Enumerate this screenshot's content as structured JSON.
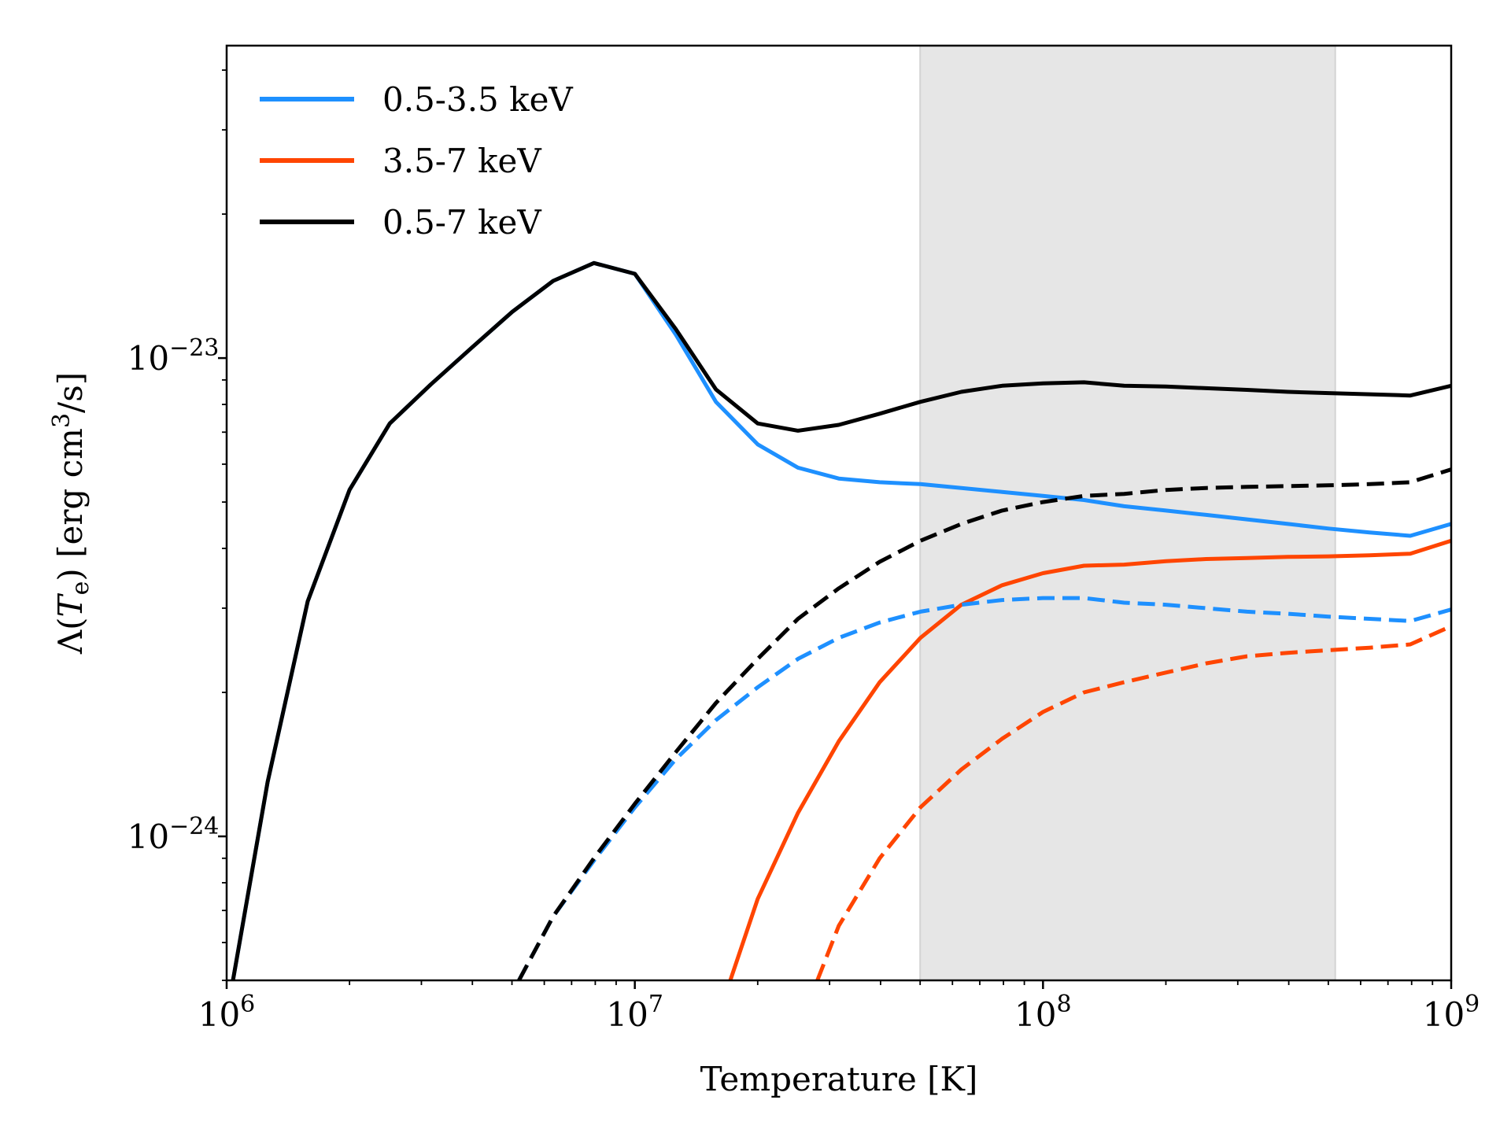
{
  "chart_data": {
    "type": "line",
    "xlabel": "Temperature [K]",
    "ylabel": {
      "prefix": "Λ(",
      "var": "T",
      "sub": "e",
      "mid": ") [erg cm",
      "sup": "3",
      "suffix": "/s]"
    },
    "x_scale": "log",
    "y_scale": "log",
    "xlim": [
      1000000,
      1000000000
    ],
    "ylim": [
      5e-25,
      4.5e-23
    ],
    "grid": false,
    "legend_position": "top-left",
    "x_ticks": [
      {
        "value": 1000000,
        "base": "10",
        "exp": "6"
      },
      {
        "value": 10000000,
        "base": "10",
        "exp": "7"
      },
      {
        "value": 100000000,
        "base": "10",
        "exp": "8"
      },
      {
        "value": 1000000000,
        "base": "10",
        "exp": "9"
      }
    ],
    "y_ticks": [
      {
        "value": 1e-24,
        "base": "10",
        "exp": "−24"
      },
      {
        "value": 1e-23,
        "base": "10",
        "exp": "−23"
      }
    ],
    "shaded_region": {
      "x_range": [
        50000000,
        520000000
      ],
      "color": "#e6e6e6"
    },
    "series": [
      {
        "name": "0.5-3.5 keV",
        "color": "#1e90ff",
        "style": "solid",
        "in_legend": true,
        "x": [
          1000000,
          1260000,
          1580000,
          2000000,
          2510000,
          3160000,
          3980000,
          5010000,
          6310000,
          7940000,
          10000000,
          12600000,
          15800000,
          20000000,
          25100000,
          31600000,
          39800000,
          50100000,
          63100000,
          79400000,
          100000000,
          126000000,
          158000000,
          200000000,
          251000000,
          316000000,
          398000000,
          501000000,
          631000000,
          794000000,
          1000000000
        ],
        "y": [
          4.2e-25,
          1.3e-24,
          3.1e-24,
          5.3e-24,
          7.3e-24,
          8.8e-24,
          1.05e-23,
          1.25e-23,
          1.45e-23,
          1.58e-23,
          1.5e-23,
          1.12e-23,
          8.1e-24,
          6.6e-24,
          5.9e-24,
          5.6e-24,
          5.5e-24,
          5.45e-24,
          5.35e-24,
          5.25e-24,
          5.15e-24,
          5.05e-24,
          4.9e-24,
          4.8e-24,
          4.7e-24,
          4.6e-24,
          4.5e-24,
          4.4e-24,
          4.32e-24,
          4.25e-24,
          4.5e-24
        ]
      },
      {
        "name": "3.5-7 keV",
        "color": "#ff4500",
        "style": "solid",
        "in_legend": true,
        "x": [
          16000000,
          20000000,
          25100000,
          31600000,
          39800000,
          50100000,
          63100000,
          79400000,
          100000000,
          126000000,
          158000000,
          200000000,
          251000000,
          316000000,
          398000000,
          501000000,
          631000000,
          794000000,
          1000000000
        ],
        "y": [
          4.2e-25,
          7.4e-25,
          1.12e-24,
          1.58e-24,
          2.1e-24,
          2.6e-24,
          3.05e-24,
          3.35e-24,
          3.55e-24,
          3.68e-24,
          3.7e-24,
          3.76e-24,
          3.8e-24,
          3.82e-24,
          3.84e-24,
          3.85e-24,
          3.87e-24,
          3.9e-24,
          4.15e-24
        ]
      },
      {
        "name": "0.5-7 keV",
        "color": "#000000",
        "style": "solid",
        "in_legend": true,
        "x": [
          1000000,
          1260000,
          1580000,
          2000000,
          2510000,
          3160000,
          3980000,
          5010000,
          6310000,
          7940000,
          10000000,
          12600000,
          15800000,
          20000000,
          25100000,
          31600000,
          39800000,
          50100000,
          63100000,
          79400000,
          100000000,
          126000000,
          158000000,
          200000000,
          251000000,
          316000000,
          398000000,
          501000000,
          631000000,
          794000000,
          1000000000
        ],
        "y": [
          4.2e-25,
          1.3e-24,
          3.1e-24,
          5.3e-24,
          7.3e-24,
          8.8e-24,
          1.05e-23,
          1.25e-23,
          1.45e-23,
          1.58e-23,
          1.5e-23,
          1.15e-23,
          8.6e-24,
          7.3e-24,
          7.05e-24,
          7.25e-24,
          7.65e-24,
          8.1e-24,
          8.5e-24,
          8.75e-24,
          8.85e-24,
          8.9e-24,
          8.75e-24,
          8.72e-24,
          8.65e-24,
          8.58e-24,
          8.5e-24,
          8.45e-24,
          8.4e-24,
          8.35e-24,
          8.75e-24
        ]
      },
      {
        "name": "0.5-3.5 keV (dashed)",
        "color": "#1e90ff",
        "style": "dashed",
        "in_legend": false,
        "x": [
          5200000,
          6310000,
          7940000,
          10000000,
          12600000,
          15800000,
          20000000,
          25100000,
          31600000,
          39800000,
          50100000,
          63100000,
          79400000,
          100000000,
          126000000,
          158000000,
          200000000,
          251000000,
          316000000,
          398000000,
          501000000,
          631000000,
          794000000,
          1000000000
        ],
        "y": [
          5e-25,
          6.8e-25,
          8.9e-25,
          1.15e-24,
          1.45e-24,
          1.75e-24,
          2.05e-24,
          2.35e-24,
          2.6e-24,
          2.8e-24,
          2.95e-24,
          3.05e-24,
          3.12e-24,
          3.15e-24,
          3.15e-24,
          3.08e-24,
          3.05e-24,
          3e-24,
          2.95e-24,
          2.92e-24,
          2.88e-24,
          2.85e-24,
          2.82e-24,
          2.98e-24
        ]
      },
      {
        "name": "3.5-7 keV (dashed)",
        "color": "#ff4500",
        "style": "dashed",
        "in_legend": false,
        "x": [
          28000000,
          31600000,
          39800000,
          50100000,
          63100000,
          79400000,
          100000000,
          126000000,
          158000000,
          200000000,
          251000000,
          316000000,
          398000000,
          501000000,
          631000000,
          794000000,
          1000000000
        ],
        "y": [
          5e-25,
          6.5e-25,
          9e-25,
          1.15e-24,
          1.38e-24,
          1.6e-24,
          1.82e-24,
          2e-24,
          2.1e-24,
          2.2e-24,
          2.3e-24,
          2.38e-24,
          2.42e-24,
          2.45e-24,
          2.48e-24,
          2.52e-24,
          2.75e-24
        ]
      },
      {
        "name": "0.5-7 keV (dashed)",
        "color": "#000000",
        "style": "dashed",
        "in_legend": false,
        "x": [
          5200000,
          6310000,
          7940000,
          10000000,
          12600000,
          15800000,
          20000000,
          25100000,
          31600000,
          39800000,
          50100000,
          63100000,
          79400000,
          100000000,
          126000000,
          158000000,
          200000000,
          251000000,
          316000000,
          398000000,
          501000000,
          631000000,
          794000000,
          1000000000
        ],
        "y": [
          5e-25,
          6.8e-25,
          9e-25,
          1.17e-24,
          1.5e-24,
          1.9e-24,
          2.35e-24,
          2.85e-24,
          3.3e-24,
          3.75e-24,
          4.15e-24,
          4.5e-24,
          4.8e-24,
          5e-24,
          5.15e-24,
          5.2e-24,
          5.3e-24,
          5.35e-24,
          5.38e-24,
          5.4e-24,
          5.42e-24,
          5.45e-24,
          5.5e-24,
          5.85e-24
        ]
      }
    ]
  }
}
